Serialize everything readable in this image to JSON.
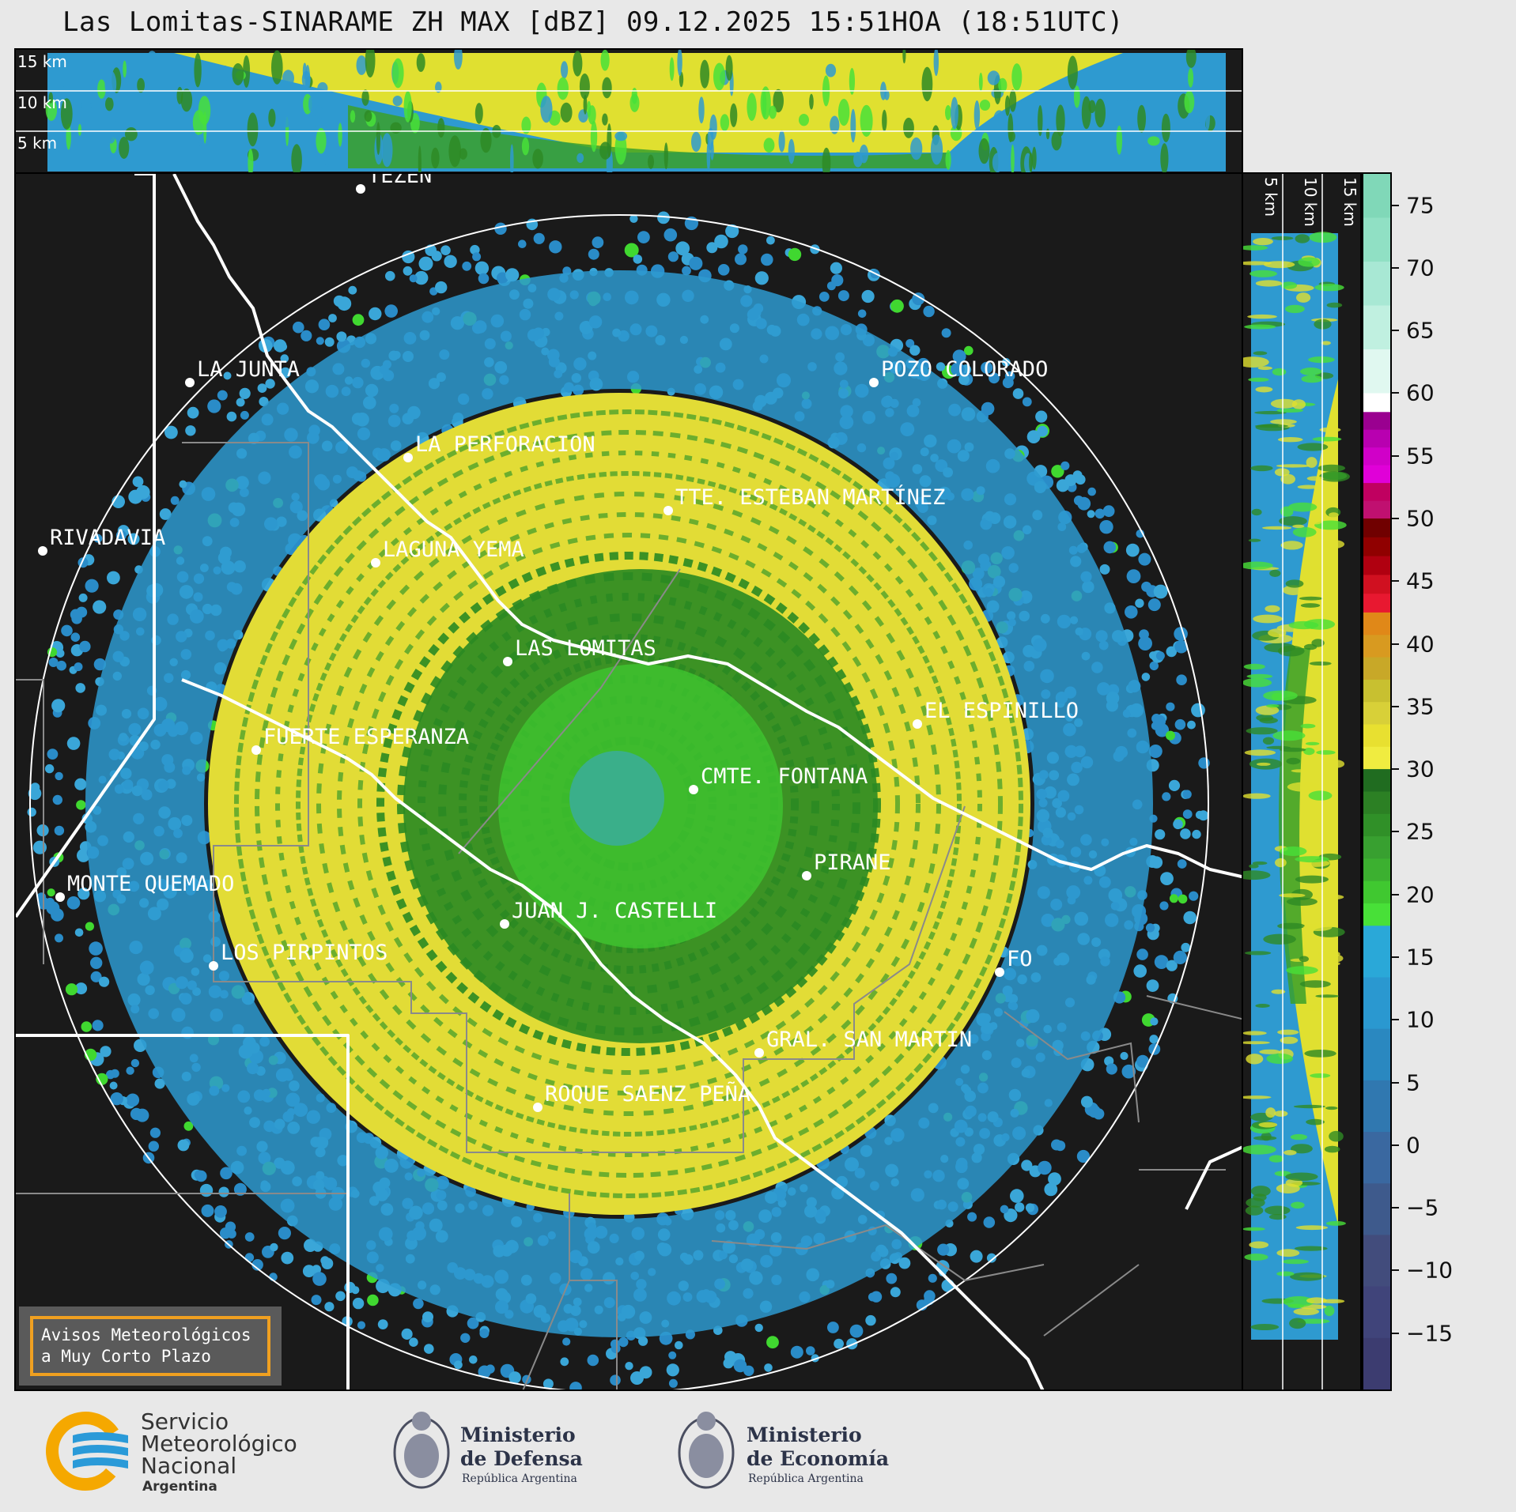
{
  "title": "Las Lomitas-SINARAME ZH MAX [dBZ] 09.12.2025 15:51HOA (18:51UTC)",
  "top_panel": {
    "height_labels": [
      "15 km",
      "10 km",
      "5 km"
    ]
  },
  "right_panel": {
    "height_labels": [
      "5 km",
      "10 km",
      "15 km"
    ]
  },
  "places": [
    {
      "name": "TEZÉN"
    },
    {
      "name": "LA JUNTA"
    },
    {
      "name": "POZO COLORADO"
    },
    {
      "name": "LA PERFORACION"
    },
    {
      "name": "TTE. ESTEBAN MARTÍNEZ"
    },
    {
      "name": "RIVADAVIA"
    },
    {
      "name": "LAGUNA YEMA"
    },
    {
      "name": "LAS LOMITAS"
    },
    {
      "name": "EL ESPINILLO"
    },
    {
      "name": "FUERTE ESPERANZA"
    },
    {
      "name": "CMTE. FONTANA"
    },
    {
      "name": "PIRANE"
    },
    {
      "name": "MONTE QUEMADO"
    },
    {
      "name": "JUAN J. CASTELLI"
    },
    {
      "name": "LOS PIRPINTOS"
    },
    {
      "name": "GRAL. SAN MARTIN"
    },
    {
      "name": "ROQUE SAENZ PEÑA"
    },
    {
      "name": "FO"
    }
  ],
  "warning_box": {
    "line1": "Avisos Meteorológicos",
    "line2": "a Muy Corto Plazo"
  },
  "colorbar": {
    "unit": "dBZ",
    "ticks": [
      "75",
      "70",
      "65",
      "60",
      "55",
      "50",
      "45",
      "40",
      "35",
      "30",
      "25",
      "20",
      "15",
      "10",
      "5",
      "0",
      "−5",
      "−10",
      "−15"
    ],
    "colors": {
      "above60": "#80d8b8",
      "mid60": "#ffffff",
      "magenta": "#d000c8",
      "red": "#d01020",
      "orange": "#e08818",
      "yellow": "#e8e030",
      "darkgreen": "#2c8c24",
      "green": "#40e030",
      "blue": "#2e9ad0",
      "navy": "#3a3a6c"
    }
  },
  "logos": {
    "smn": {
      "line1": "Servicio",
      "line2": "Meteorológico",
      "line3": "Nacional",
      "line4": "Argentina"
    },
    "defensa": {
      "line1": "Ministerio",
      "line2": "de Defensa",
      "line3": "República Argentina"
    },
    "economia": {
      "line1": "Ministerio",
      "line2": "de Economía",
      "line3": "República Argentina"
    }
  }
}
